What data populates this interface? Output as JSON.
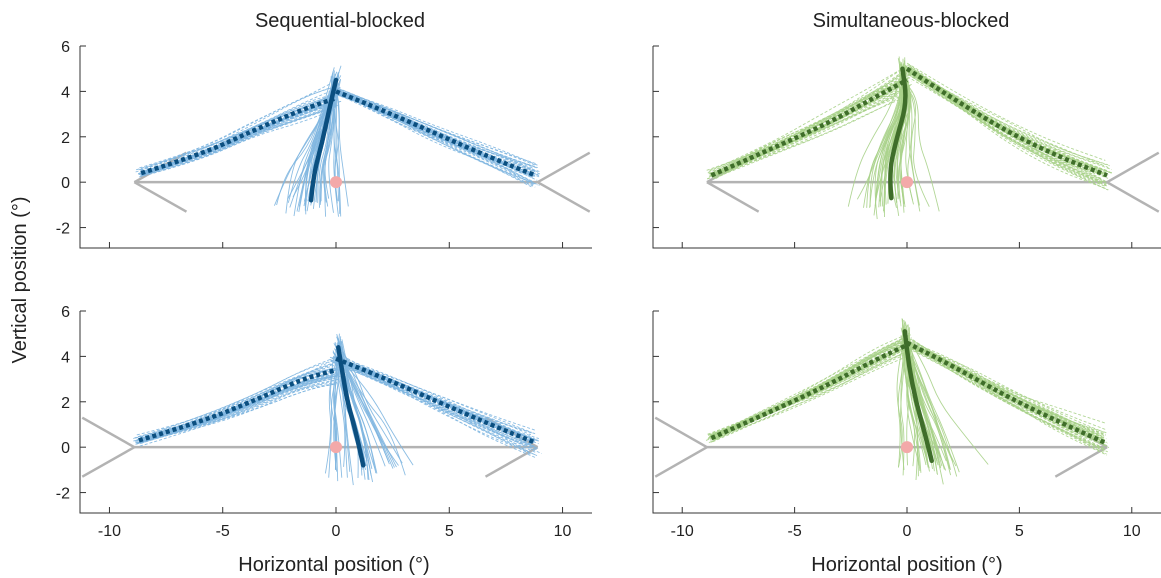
{
  "figure": {
    "ylabel": "Vertical position (°)",
    "xlabel": "Horizontal position (°)"
  },
  "colors": {
    "blue_light": "#7fb6e0",
    "blue_dark": "#0b4f80",
    "green_light": "#a9d28a",
    "green_dark": "#3f6e2a",
    "arrow_gray": "#b3b3b3",
    "fixation_pink": "#f3a9a9"
  },
  "chart_data": [
    {
      "type": "line",
      "title": "Sequential-blocked",
      "color_set": "blue",
      "xlim": [
        -11.3,
        11.3
      ],
      "ylim": [
        -2.9,
        6
      ],
      "xticks": [
        -10,
        -5,
        0,
        5,
        10
      ],
      "yticks": [
        -2,
        0,
        2,
        4,
        6
      ],
      "show_xtick_labels": false,
      "figure": {
        "orientation": "left",
        "tip_x": -8.9,
        "end_x": 8.9,
        "fins": [
          [
            -6.6,
            1.3
          ],
          [
            -6.6,
            -1.3
          ],
          [
            11.2,
            1.3
          ],
          [
            11.2,
            -1.3
          ]
        ]
      },
      "fixation": [
        0,
        0
      ],
      "mean_saccade": [
        [
          -1.1,
          -0.8
        ],
        [
          -1.0,
          0.3
        ],
        [
          -0.6,
          1.8
        ],
        [
          -0.3,
          3.2
        ],
        [
          0.0,
          4.5
        ]
      ],
      "mean_pursuit_left": [
        [
          -8.6,
          0.4
        ],
        [
          -6.0,
          1.2
        ],
        [
          -3.6,
          2.3
        ],
        [
          -1.5,
          3.2
        ],
        [
          0.0,
          3.7
        ]
      ],
      "mean_pursuit_right": [
        [
          0.0,
          4.0
        ],
        [
          2.0,
          3.2
        ],
        [
          4.5,
          2.1
        ],
        [
          6.8,
          1.1
        ],
        [
          8.8,
          0.3
        ]
      ]
    },
    {
      "type": "line",
      "title": "Simultaneous-blocked",
      "color_set": "green",
      "xlim": [
        -11.3,
        11.3
      ],
      "ylim": [
        -2.9,
        6
      ],
      "xticks": [
        -10,
        -5,
        0,
        5,
        10
      ],
      "yticks": [
        -2,
        0,
        2,
        4,
        6
      ],
      "show_xtick_labels": false,
      "figure": {
        "orientation": "left",
        "tip_x": -8.9,
        "end_x": 8.9,
        "fins": [
          [
            -6.6,
            1.3
          ],
          [
            -6.6,
            -1.3
          ],
          [
            11.2,
            1.3
          ],
          [
            11.2,
            -1.3
          ]
        ]
      },
      "fixation": [
        0,
        0
      ],
      "mean_saccade": [
        [
          -0.7,
          -0.7
        ],
        [
          -0.8,
          0.4
        ],
        [
          -0.5,
          1.8
        ],
        [
          0.0,
          3.5
        ],
        [
          -0.2,
          5.0
        ]
      ],
      "mean_pursuit_left": [
        [
          -8.7,
          0.3
        ],
        [
          -6.2,
          1.4
        ],
        [
          -3.5,
          2.6
        ],
        [
          -1.5,
          3.7
        ],
        [
          0.0,
          4.5
        ]
      ],
      "mean_pursuit_right": [
        [
          0.0,
          5.0
        ],
        [
          2.0,
          3.7
        ],
        [
          4.5,
          2.2
        ],
        [
          6.8,
          1.1
        ],
        [
          8.9,
          0.3
        ]
      ]
    },
    {
      "type": "line",
      "title": "",
      "color_set": "blue",
      "xlim": [
        -11.3,
        11.3
      ],
      "ylim": [
        -2.9,
        6
      ],
      "xticks": [
        -10,
        -5,
        0,
        5,
        10
      ],
      "yticks": [
        -2,
        0,
        2,
        4,
        6
      ],
      "show_xtick_labels": true,
      "figure": {
        "orientation": "right",
        "tip_x": -8.9,
        "end_x": 8.9,
        "fins": [
          [
            -11.2,
            1.3
          ],
          [
            -11.2,
            -1.3
          ],
          [
            6.6,
            1.3
          ],
          [
            6.6,
            -1.3
          ]
        ]
      },
      "fixation": [
        0,
        0
      ],
      "mean_saccade": [
        [
          1.2,
          -0.8
        ],
        [
          0.9,
          0.6
        ],
        [
          0.5,
          2.0
        ],
        [
          0.3,
          3.2
        ],
        [
          0.1,
          4.4
        ]
      ],
      "mean_pursuit_left": [
        [
          -8.7,
          0.3
        ],
        [
          -6.0,
          1.1
        ],
        [
          -3.5,
          2.1
        ],
        [
          -1.5,
          3.0
        ],
        [
          0.0,
          3.4
        ]
      ],
      "mean_pursuit_right": [
        [
          0.0,
          3.9
        ],
        [
          2.0,
          3.1
        ],
        [
          4.5,
          2.0
        ],
        [
          6.8,
          1.0
        ],
        [
          8.8,
          0.2
        ]
      ]
    },
    {
      "type": "line",
      "title": "",
      "color_set": "green",
      "xlim": [
        -11.3,
        11.3
      ],
      "ylim": [
        -2.9,
        6
      ],
      "xticks": [
        -10,
        -5,
        0,
        5,
        10
      ],
      "yticks": [
        -2,
        0,
        2,
        4,
        6
      ],
      "show_xtick_labels": true,
      "figure": {
        "orientation": "right",
        "tip_x": -8.9,
        "end_x": 8.9,
        "fins": [
          [
            -11.2,
            1.3
          ],
          [
            -11.2,
            -1.3
          ],
          [
            6.6,
            1.3
          ],
          [
            6.6,
            -1.3
          ]
        ]
      },
      "fixation": [
        0,
        0
      ],
      "mean_saccade": [
        [
          1.1,
          -0.6
        ],
        [
          0.8,
          0.6
        ],
        [
          0.4,
          2.0
        ],
        [
          0.1,
          3.5
        ],
        [
          -0.1,
          5.1
        ]
      ],
      "mean_pursuit_left": [
        [
          -8.7,
          0.4
        ],
        [
          -6.2,
          1.5
        ],
        [
          -3.6,
          2.7
        ],
        [
          -1.5,
          3.8
        ],
        [
          0.0,
          4.5
        ]
      ],
      "mean_pursuit_right": [
        [
          0.0,
          4.6
        ],
        [
          2.0,
          3.6
        ],
        [
          4.5,
          2.2
        ],
        [
          6.8,
          1.1
        ],
        [
          8.8,
          0.2
        ]
      ]
    }
  ]
}
